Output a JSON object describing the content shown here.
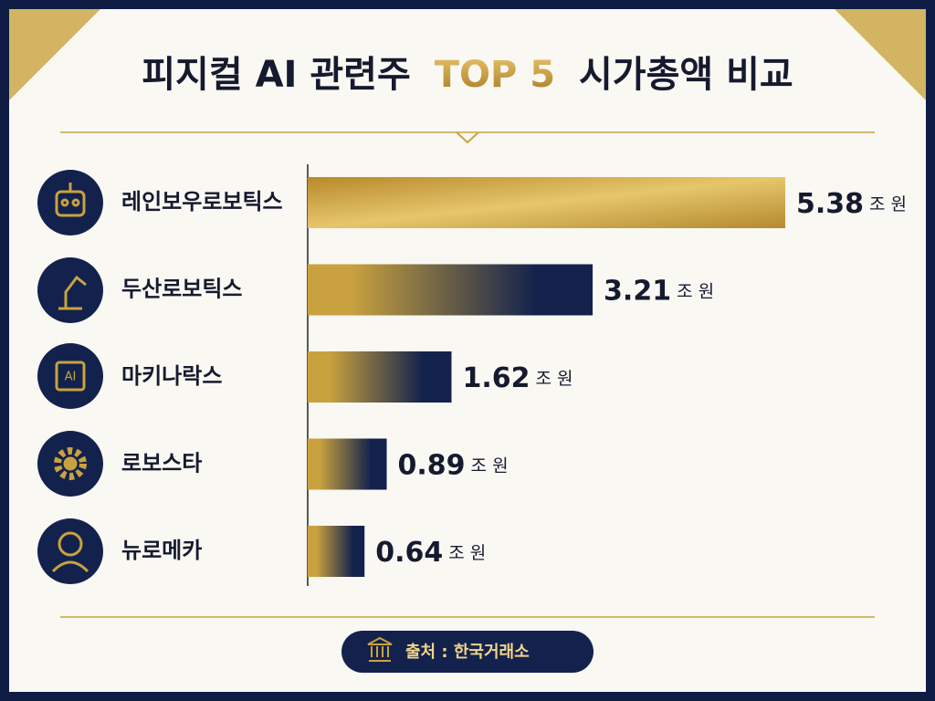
{
  "chart_data": {
    "type": "hbar",
    "title_parts": [
      "피지컬 AI 관련주",
      "TOP 5",
      "시가총액 비교"
    ],
    "categories": [
      "레인보우로보틱스",
      "두산로보틱스",
      "마키나락스",
      "로보스타",
      "뉴로메카"
    ],
    "values": [
      5.38,
      3.21,
      1.62,
      0.89,
      0.64
    ],
    "value_unit": "조 원",
    "xlim": [
      0,
      5.38
    ],
    "color": "#c9a23f",
    "color2": "#13224d",
    "source": "출처 : 한국거래소"
  }
}
